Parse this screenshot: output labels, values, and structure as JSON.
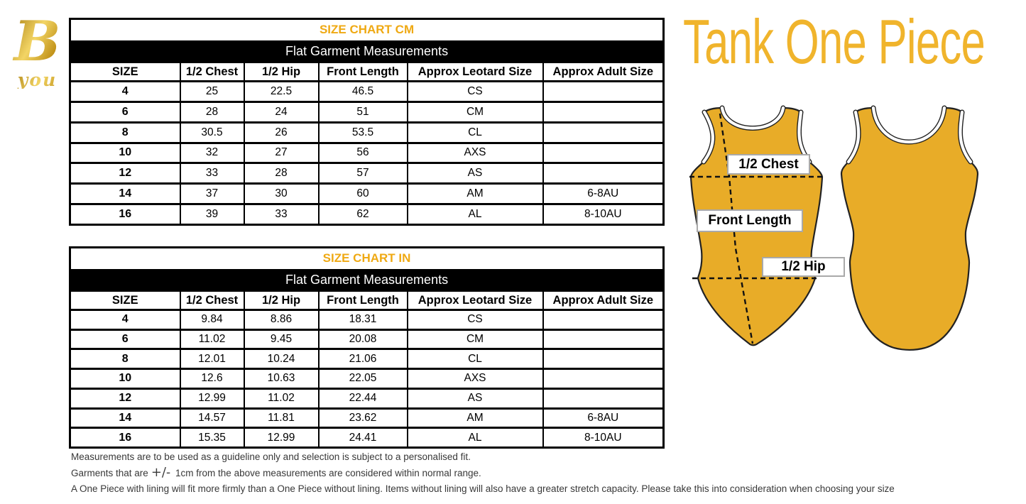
{
  "brand": {
    "logo_b": "B",
    "logo_you": "you"
  },
  "page_title": "Tank One Piece",
  "tables": [
    {
      "title": "SIZE CHART CM",
      "subtitle": "Flat Garment Measurements",
      "headers": [
        "SIZE",
        "1/2 Chest",
        "1/2 Hip",
        "Front Length",
        "Approx Leotard Size",
        "Approx Adult Size"
      ],
      "rows": [
        [
          "4",
          "25",
          "22.5",
          "46.5",
          "CS",
          ""
        ],
        [
          "6",
          "28",
          "24",
          "51",
          "CM",
          ""
        ],
        [
          "8",
          "30.5",
          "26",
          "53.5",
          "CL",
          ""
        ],
        [
          "10",
          "32",
          "27",
          "56",
          "AXS",
          ""
        ],
        [
          "12",
          "33",
          "28",
          "57",
          "AS",
          ""
        ],
        [
          "14",
          "37",
          "30",
          "60",
          "AM",
          "6-8AU"
        ],
        [
          "16",
          "39",
          "33",
          "62",
          "AL",
          "8-10AU"
        ]
      ]
    },
    {
      "title": "SIZE CHART IN",
      "subtitle": "Flat Garment Measurements",
      "headers": [
        "SIZE",
        "1/2 Chest",
        "1/2 Hip",
        "Front Length",
        "Approx Leotard Size",
        "Approx Adult Size"
      ],
      "rows": [
        [
          "4",
          "9.84",
          "8.86",
          "18.31",
          "CS",
          ""
        ],
        [
          "6",
          "11.02",
          "9.45",
          "20.08",
          "CM",
          ""
        ],
        [
          "8",
          "12.01",
          "10.24",
          "21.06",
          "CL",
          ""
        ],
        [
          "10",
          "12.6",
          "10.63",
          "22.05",
          "AXS",
          ""
        ],
        [
          "12",
          "12.99",
          "11.02",
          "22.44",
          "AS",
          ""
        ],
        [
          "14",
          "14.57",
          "11.81",
          "23.62",
          "AM",
          "6-8AU"
        ],
        [
          "16",
          "15.35",
          "12.99",
          "24.41",
          "AL",
          "8-10AU"
        ]
      ]
    }
  ],
  "diagram": {
    "labels": {
      "chest": "1/2 Chest",
      "front_length": "Front Length",
      "hip": "1/2 Hip"
    }
  },
  "footnotes": {
    "line1": "Measurements are to be used as a guideline only and selection is subject to a personalised fit.",
    "line2_prefix": "Garments that are",
    "line2_pm": "+/-",
    "line2_suffix": "1cm from the above measurements are considered within normal range.",
    "line3": "A One Piece with lining will fit more firmly than a One Piece without lining.  Items without lining will also have a greater stretch capacity. Please take this into consideration when choosing your size"
  },
  "colors": {
    "brand_gold": "#CFA21B",
    "table_title_gold": "#EFA913",
    "page_title_gold": "#F0B42C",
    "leotard_gold": "#E8AC28",
    "band_black": "#000000"
  }
}
